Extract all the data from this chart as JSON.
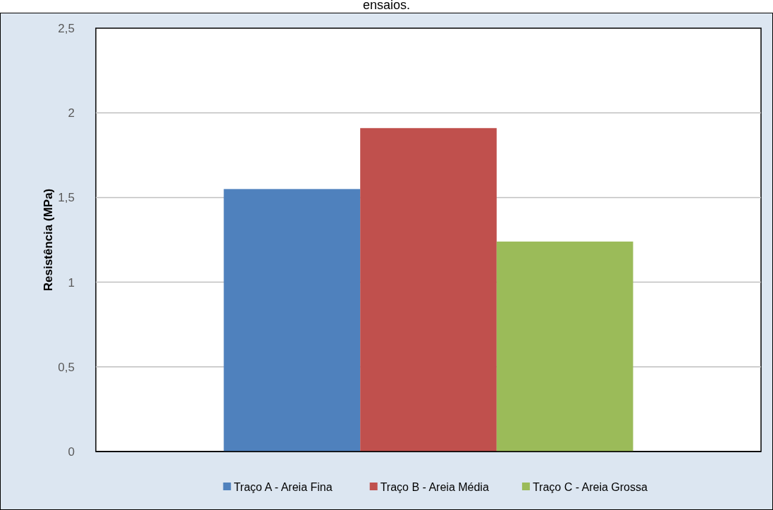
{
  "chart_data": {
    "type": "bar",
    "title": "ensaios.",
    "ylabel": "Resistência (MPa)",
    "categories": [
      null
    ],
    "series": [
      {
        "name": "Traço A - Areia Fina",
        "color": "#4f81bd",
        "values": [
          1.55
        ]
      },
      {
        "name": "Traço B - Areia Média",
        "color": "#c0504d",
        "values": [
          1.91
        ]
      },
      {
        "name": "Traço C - Areia Grossa",
        "color": "#9bbb59",
        "values": [
          1.24
        ]
      }
    ],
    "ylim": [
      0,
      2.5
    ],
    "yticks": [
      0,
      {
        "value": 0.5,
        "label": "0,5"
      },
      1,
      {
        "value": 1.5,
        "label": "1,5"
      },
      2,
      {
        "value": 2.5,
        "label": "2,5"
      }
    ],
    "grid": "y",
    "legend": "bottom"
  }
}
